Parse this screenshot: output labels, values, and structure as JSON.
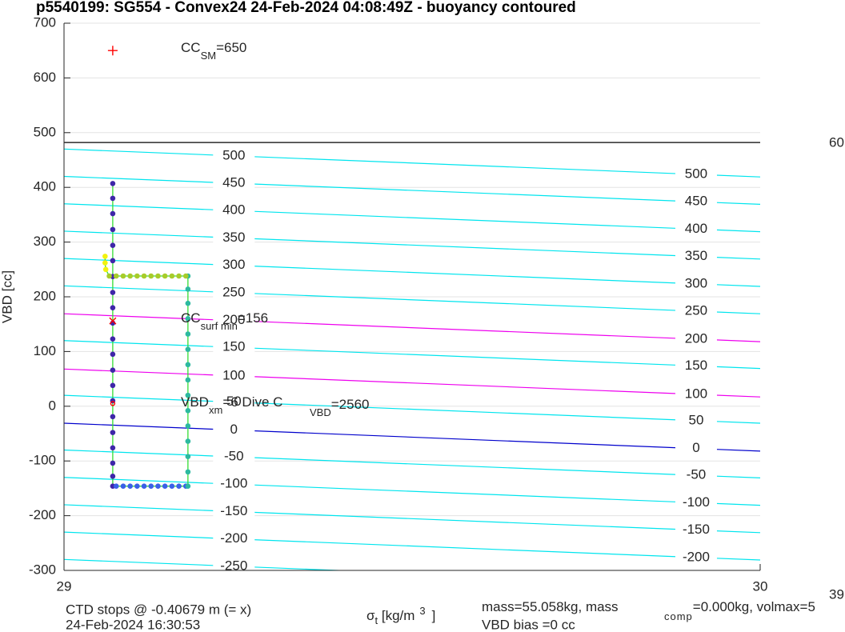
{
  "chart_data": {
    "type": "scatter",
    "title": "p5540199: SG554 - Convex24 24-Feb-2024 04:08:49Z - buoyancy contoured",
    "ylabel": "VBD [cc]",
    "xlabel": {
      "text": "σ",
      "sub": "t",
      "rest": " [kg/m",
      "sup": "3",
      "end": "]"
    },
    "xlim": [
      29,
      30
    ],
    "ylim": [
      -300,
      700
    ],
    "xticks": [
      29,
      30
    ],
    "yticks": [
      -300,
      -200,
      -100,
      0,
      100,
      200,
      300,
      400,
      500,
      600,
      700
    ],
    "grid": true,
    "line_color": "#33dd33",
    "hlines": [
      {
        "y": 482,
        "color": "#000000"
      }
    ],
    "contours": [
      {
        "label": 500,
        "values": [
          470,
          419
        ],
        "color": "#00e5ee"
      },
      {
        "label": 450,
        "values": [
          420,
          369
        ],
        "color": "#00e5ee"
      },
      {
        "label": 400,
        "values": [
          370,
          319
        ],
        "color": "#00e5ee"
      },
      {
        "label": 350,
        "values": [
          320,
          269
        ],
        "color": "#00e5ee"
      },
      {
        "label": 300,
        "values": [
          270,
          219
        ],
        "color": "#00e5ee"
      },
      {
        "label": 250,
        "values": [
          220,
          169
        ],
        "color": "#00e5ee"
      },
      {
        "label": 200,
        "values": [
          169,
          118
        ],
        "color": "#ee00ee"
      },
      {
        "label": 150,
        "values": [
          120,
          69
        ],
        "color": "#00e5ee"
      },
      {
        "label": 100,
        "values": [
          68,
          17
        ],
        "color": "#ee00ee"
      },
      {
        "label": 50,
        "values": [
          20,
          -31
        ],
        "color": "#00e5ee"
      },
      {
        "label": 0,
        "values": [
          -31,
          -82
        ],
        "color": "#0000cc"
      },
      {
        "label": -50,
        "values": [
          -80,
          -131
        ],
        "color": "#00e5ee"
      },
      {
        "label": -100,
        "values": [
          -130,
          -181
        ],
        "color": "#00e5ee"
      },
      {
        "label": -150,
        "values": [
          -180,
          -231
        ],
        "color": "#00e5ee"
      },
      {
        "label": -200,
        "values": [
          -230,
          -281
        ],
        "color": "#00e5ee"
      },
      {
        "label": -250,
        "values": [
          -280,
          -331
        ],
        "color": "#00e5ee"
      }
    ],
    "series": [
      {
        "color": "#3e26a8",
        "x": [
          29.07,
          29.07,
          29.07,
          29.07,
          29.07,
          29.07,
          29.07,
          29.07,
          29.07,
          29.07,
          29.07,
          29.07,
          29.07,
          29.07,
          29.07,
          29.07,
          29.07,
          29.07,
          29.07,
          29.07,
          29.07
        ],
        "values": [
          407,
          380,
          352,
          323,
          294,
          266,
          237,
          208,
          180,
          152,
          123,
          95,
          66,
          38,
          10,
          -19,
          -48,
          -76,
          -104,
          -128,
          -146
        ]
      },
      {
        "color": "#3a60e8",
        "x": [
          29.075,
          29.085,
          29.095,
          29.105,
          29.115,
          29.125,
          29.135,
          29.145,
          29.155,
          29.165,
          29.175
        ],
        "values": [
          -146,
          -146,
          -146,
          -146,
          -146,
          -146,
          -146,
          -146,
          -146,
          -146,
          -146
        ]
      },
      {
        "color": "#2db9a0",
        "x": [
          29.178,
          29.178,
          29.178,
          29.178,
          29.178,
          29.178,
          29.178,
          29.178,
          29.178,
          29.178,
          29.178,
          29.178,
          29.178,
          29.178,
          29.178
        ],
        "values": [
          -146,
          -120,
          -92,
          -64,
          -36,
          -8,
          20,
          48,
          76,
          104,
          132,
          160,
          188,
          214,
          238
        ]
      },
      {
        "color": "#a8cc2a",
        "x": [
          29.175,
          29.165,
          29.155,
          29.145,
          29.135,
          29.125,
          29.115,
          29.105,
          29.095,
          29.085,
          29.075,
          29.065
        ],
        "values": [
          238,
          238,
          238,
          238,
          238,
          238,
          238,
          238,
          238,
          238,
          238,
          238
        ]
      },
      {
        "color": "#f2f20e",
        "x": [
          29.06,
          29.059,
          29.059
        ],
        "values": [
          250,
          262,
          274
        ]
      }
    ],
    "markers": [
      {
        "x": 29.07,
        "y": 650,
        "symbol": "+",
        "color": "#ff0000"
      },
      {
        "x": 29.07,
        "y": 156,
        "symbol": "x",
        "color": "#ff0000"
      },
      {
        "x": 29.07,
        "y": 5,
        "symbol": "o",
        "color": "#ff0000"
      }
    ],
    "annotations": [
      {
        "text": "CC",
        "sub": "SM",
        "rest": "=650"
      },
      {
        "text": "CC",
        "sub": "surf min",
        "rest": "=156"
      },
      {
        "text": "VBD",
        "sub": "xm",
        "rest": "=6 Dive C"
      },
      {
        "text": "",
        "sub": "VBD",
        "rest": "=2560"
      }
    ],
    "footer": {
      "ctd": "CTD stops @ -0.40679 m (= x)",
      "date": "24-Feb-2024 16:30:53",
      "mass": "mass=55.058kg, mass",
      "mass_sub": "comp",
      "mass_rest": "=0.000kg, volmax=5",
      "bias": "VBD bias =0 cc",
      "edge_top": "60",
      "edge_bottom": "39"
    }
  }
}
